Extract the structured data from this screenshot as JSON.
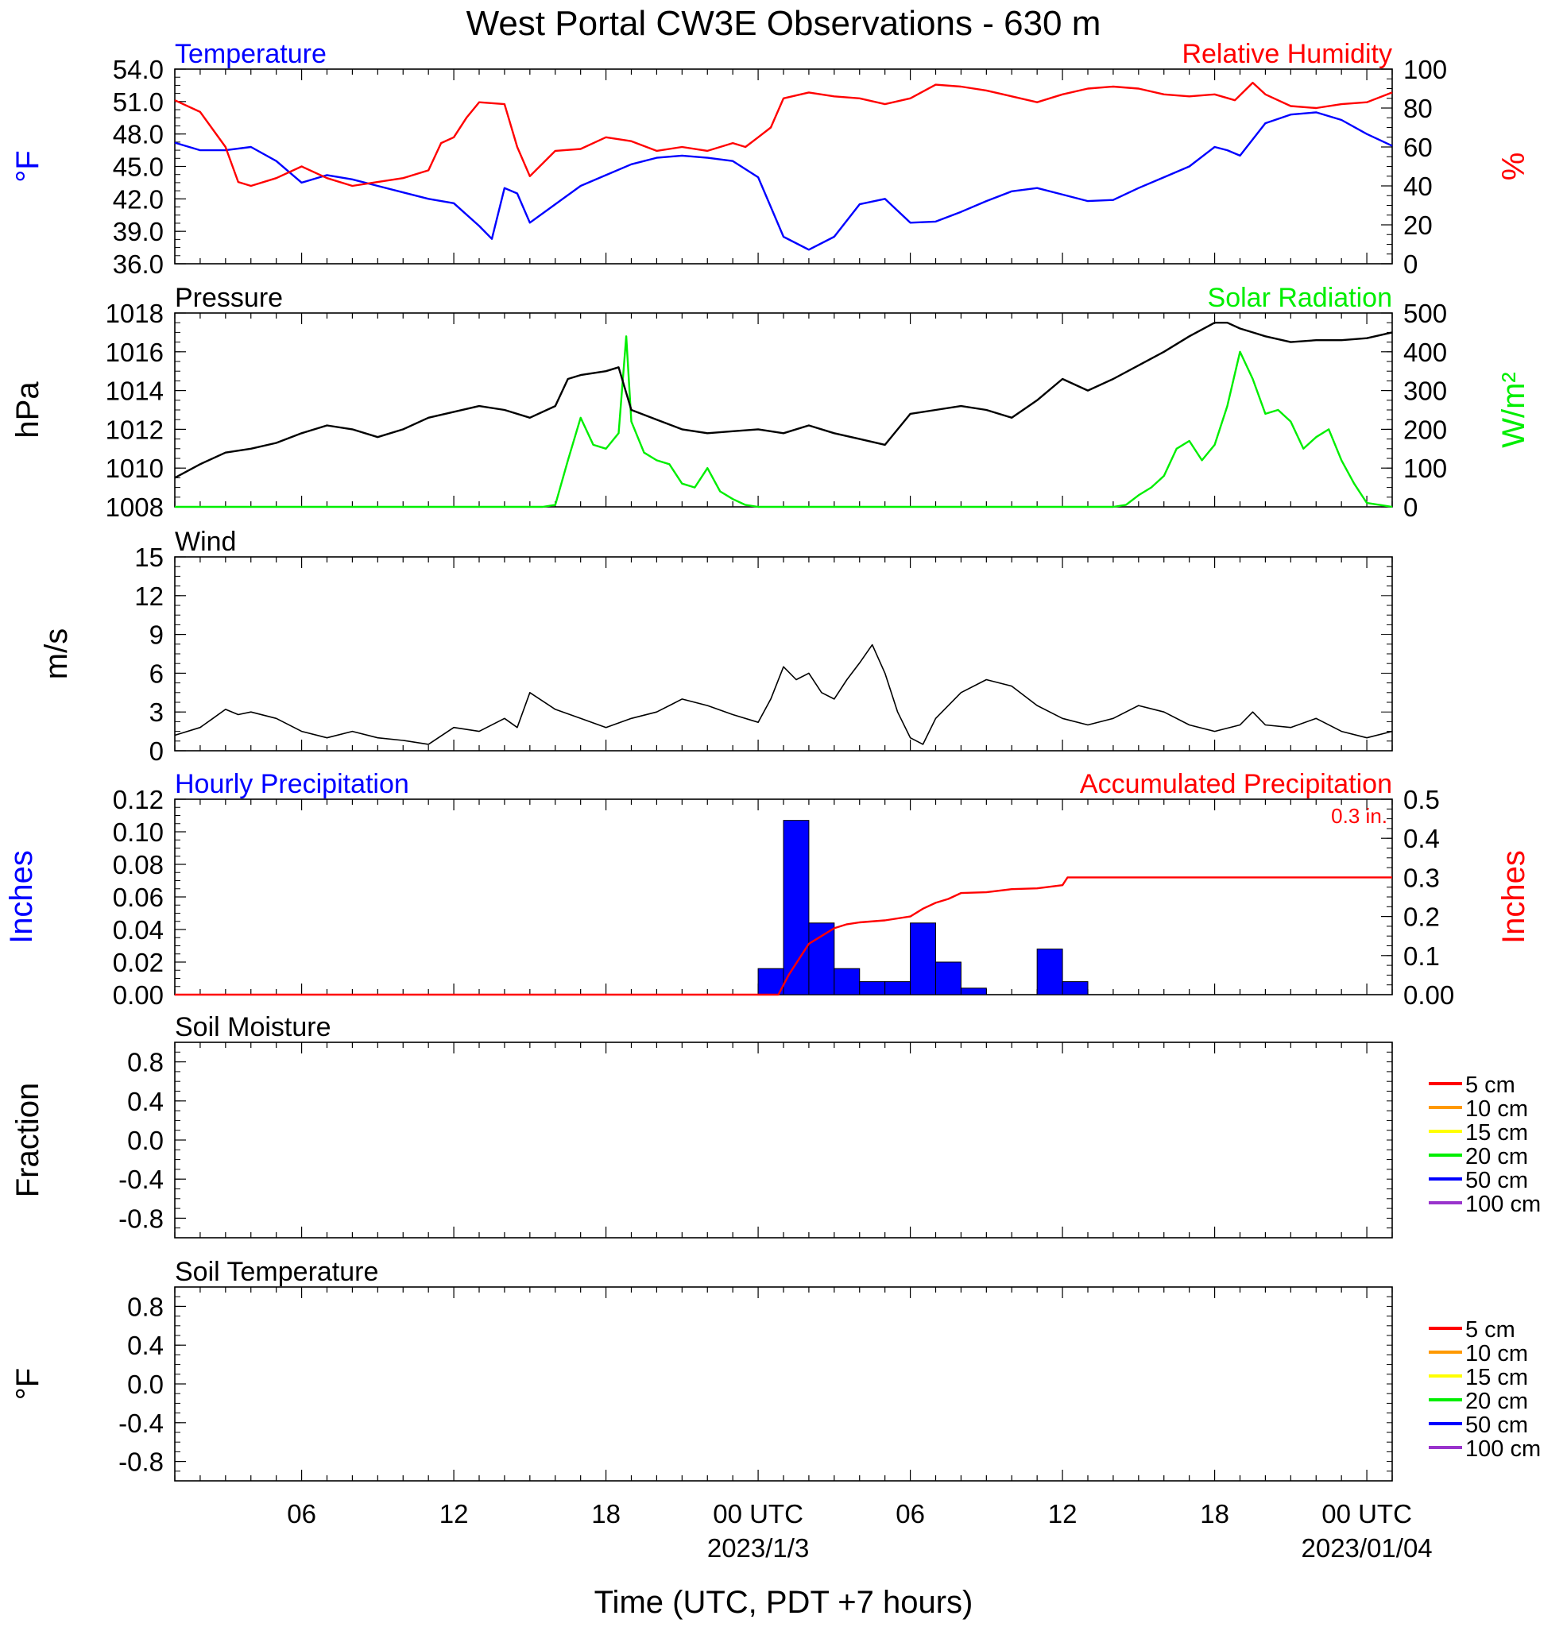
{
  "title": "West Portal CW3E Observations - 630 m",
  "x_axis": {
    "label": "Time (UTC, PDT +7 hours)",
    "hours_start": 1,
    "hours_end": 49,
    "tick_every_hours": 6,
    "tick_labels": [
      {
        "hour": 6,
        "label": "06"
      },
      {
        "hour": 12,
        "label": "12"
      },
      {
        "hour": 18,
        "label": "18"
      },
      {
        "hour": 24,
        "label": "00 UTC",
        "date": "2023/1/3"
      },
      {
        "hour": 30,
        "label": "06"
      },
      {
        "hour": 36,
        "label": "12"
      },
      {
        "hour": 42,
        "label": "18"
      },
      {
        "hour": 48,
        "label": "00 UTC",
        "date": "2023/01/04"
      }
    ]
  },
  "chart_data": [
    {
      "type": "line",
      "panel": "temperature_humidity",
      "title_left": "Temperature",
      "title_right": "Relative Humidity",
      "ylabel_left": "°F",
      "ylabel_right": "%",
      "ylim_left": [
        36,
        54
      ],
      "ylim_right": [
        0,
        100
      ],
      "yticks_left": [
        "54.0",
        "51.0",
        "48.0",
        "45.0",
        "42.0",
        "39.0",
        "36.0"
      ],
      "yticks_right": [
        "100",
        "80",
        "60",
        "40",
        "20",
        "0"
      ],
      "series": [
        {
          "name": "Temperature",
          "axis": "left",
          "color": "#0000ff",
          "x": [
            1,
            2,
            3,
            4,
            5,
            6,
            7,
            8,
            9,
            10,
            11,
            12,
            13,
            13.5,
            14,
            14.5,
            15,
            16,
            17,
            18,
            19,
            20,
            21,
            22,
            23,
            24,
            25,
            26,
            27,
            28,
            29,
            30,
            31,
            32,
            33,
            34,
            35,
            36,
            37,
            38,
            39,
            40,
            41,
            42,
            42.5,
            43,
            44,
            45,
            46,
            47,
            48,
            49
          ],
          "y": [
            47.2,
            46.5,
            46.5,
            46.8,
            45.5,
            43.5,
            44.2,
            43.8,
            43.2,
            42.6,
            42.0,
            41.6,
            39.5,
            38.3,
            43.0,
            42.5,
            39.8,
            41.5,
            43.2,
            44.2,
            45.2,
            45.8,
            46.0,
            45.8,
            45.5,
            44.0,
            38.5,
            37.3,
            38.5,
            41.5,
            42.0,
            39.8,
            39.9,
            40.8,
            41.8,
            42.7,
            43.0,
            42.4,
            41.8,
            41.9,
            43.0,
            44.0,
            45.0,
            46.8,
            46.5,
            46.0,
            49.0,
            49.8,
            50.0,
            49.3,
            48.0,
            46.9
          ]
        },
        {
          "name": "Relative Humidity",
          "axis": "right",
          "color": "#ff0000",
          "x": [
            1,
            2,
            3,
            3.5,
            4,
            5,
            6,
            7,
            8,
            9,
            10,
            11,
            11.5,
            12,
            12.5,
            13,
            14,
            14.5,
            15,
            16,
            17,
            18,
            19,
            20,
            21,
            22,
            23,
            23.5,
            24,
            24.5,
            25,
            26,
            27,
            28,
            29,
            30,
            31,
            32,
            33,
            34,
            35,
            36,
            37,
            38,
            39,
            40,
            41,
            42,
            42.8,
            43.5,
            44,
            45,
            46,
            47,
            48,
            49
          ],
          "y": [
            84,
            78,
            60,
            42,
            40,
            44,
            50,
            44,
            40,
            42,
            44,
            48,
            62,
            65,
            75,
            83,
            82,
            60,
            45,
            58,
            59,
            65,
            63,
            58,
            60,
            58,
            62,
            60,
            65,
            70,
            85,
            88,
            86,
            85,
            82,
            85,
            92,
            91,
            89,
            86,
            83,
            87,
            90,
            91,
            90,
            87,
            86,
            87,
            84,
            93,
            87,
            81,
            80,
            82,
            83,
            88
          ]
        }
      ]
    },
    {
      "type": "line",
      "panel": "pressure_solar",
      "title_left": "Pressure",
      "title_right": "Solar Radiation",
      "ylabel_left": "hPa",
      "ylabel_right": "W/m²",
      "ylim_left": [
        1008,
        1018
      ],
      "ylim_right": [
        0,
        500
      ],
      "yticks_left": [
        "1018",
        "1016",
        "1014",
        "1012",
        "1010",
        "1008"
      ],
      "yticks_right": [
        "500",
        "400",
        "300",
        "200",
        "100",
        "0"
      ],
      "series": [
        {
          "name": "Pressure",
          "axis": "left",
          "color": "#000000",
          "x": [
            1,
            2,
            3,
            4,
            5,
            6,
            7,
            8,
            9,
            10,
            11,
            12,
            13,
            14,
            15,
            16,
            16.5,
            17,
            18,
            18.5,
            19,
            20,
            21,
            22,
            23,
            24,
            25,
            26,
            27,
            28,
            29,
            30,
            31,
            32,
            33,
            34,
            35,
            36,
            37,
            38,
            39,
            40,
            41,
            42,
            42.5,
            43,
            43.5,
            44,
            45,
            46,
            47,
            48,
            49
          ],
          "y": [
            1009.5,
            1010.2,
            1010.8,
            1011.0,
            1011.3,
            1011.8,
            1012.2,
            1012.0,
            1011.6,
            1012.0,
            1012.6,
            1012.9,
            1013.2,
            1013.0,
            1012.6,
            1013.2,
            1014.6,
            1014.8,
            1015.0,
            1015.2,
            1013.0,
            1012.5,
            1012.0,
            1011.8,
            1011.9,
            1012.0,
            1011.8,
            1012.2,
            1011.8,
            1011.5,
            1011.2,
            1012.8,
            1013.0,
            1013.2,
            1013.0,
            1012.6,
            1013.5,
            1014.6,
            1014.0,
            1014.6,
            1015.3,
            1016.0,
            1016.8,
            1017.5,
            1017.5,
            1017.2,
            1017.0,
            1016.8,
            1016.5,
            1016.6,
            1016.6,
            1016.7,
            1017.0
          ]
        },
        {
          "name": "Solar Radiation",
          "axis": "right",
          "color": "#00ee00",
          "x": [
            1,
            15,
            15.5,
            16,
            16.5,
            17,
            17.5,
            18,
            18.5,
            18.8,
            19,
            19.5,
            20,
            20.5,
            21,
            21.5,
            22,
            22.5,
            23,
            23.5,
            24,
            25,
            38,
            38.5,
            39,
            39.5,
            40,
            40.5,
            41,
            41.5,
            42,
            42.5,
            43,
            43.5,
            44,
            44.5,
            45,
            45.5,
            46,
            46.5,
            47,
            47.5,
            48,
            49
          ],
          "y": [
            0,
            0,
            0,
            5,
            120,
            230,
            160,
            150,
            190,
            440,
            220,
            140,
            120,
            110,
            60,
            50,
            100,
            40,
            20,
            5,
            0,
            0,
            0,
            5,
            30,
            50,
            80,
            150,
            170,
            120,
            160,
            260,
            400,
            330,
            240,
            250,
            220,
            150,
            180,
            200,
            120,
            60,
            10,
            0
          ]
        }
      ]
    },
    {
      "type": "line",
      "panel": "wind",
      "title": "Wind",
      "ylabel": "m/s",
      "ylim": [
        0,
        15
      ],
      "yticks": [
        "15",
        "12",
        "9",
        "6",
        "3",
        "0"
      ],
      "series": [
        {
          "name": "Wind",
          "color": "#000000",
          "x": [
            1,
            2,
            2.5,
            3,
            3.5,
            4,
            5,
            6,
            7,
            8,
            9,
            10,
            11,
            12,
            13,
            14,
            14.5,
            15,
            16,
            17,
            18,
            19,
            20,
            20.5,
            21,
            22,
            23,
            24,
            24.5,
            25,
            25.5,
            26,
            26.5,
            27,
            27.5,
            28,
            28.5,
            29,
            29.5,
            30,
            30.5,
            31,
            32,
            33,
            34,
            35,
            36,
            37,
            38,
            39,
            40,
            41,
            42,
            43,
            43.5,
            44,
            45,
            46,
            47,
            48,
            49
          ],
          "y": [
            1.2,
            1.8,
            2.5,
            3.2,
            2.8,
            3.0,
            2.5,
            1.5,
            1.0,
            1.5,
            1.0,
            0.8,
            0.5,
            1.8,
            1.5,
            2.5,
            1.8,
            4.5,
            3.2,
            2.5,
            1.8,
            2.5,
            3.0,
            3.5,
            4.0,
            3.5,
            2.8,
            2.2,
            4.0,
            6.5,
            5.5,
            6.0,
            4.5,
            4.0,
            5.5,
            6.8,
            8.2,
            6.0,
            3.0,
            1.0,
            0.5,
            2.5,
            4.5,
            5.5,
            5.0,
            3.5,
            2.5,
            2.0,
            2.5,
            3.5,
            3.0,
            2.0,
            1.5,
            2.0,
            3.0,
            2.0,
            1.8,
            2.5,
            1.5,
            1.0,
            1.5
          ]
        }
      ]
    },
    {
      "type": "bar",
      "panel": "precipitation",
      "title_left": "Hourly Precipitation",
      "title_right": "Accumulated Precipitation",
      "total_label": "0.3 in.",
      "ylabel_left": "Inches",
      "ylabel_right": "Inches",
      "ylim_left": [
        0,
        0.12
      ],
      "ylim_right": [
        0,
        0.5
      ],
      "yticks_left": [
        "0.12",
        "0.10",
        "0.08",
        "0.06",
        "0.04",
        "0.02",
        "0.00"
      ],
      "yticks_right": [
        "0.5",
        "0.4",
        "0.3",
        "0.2",
        "0.1",
        "0.00"
      ],
      "bars": {
        "name": "Hourly Precipitation",
        "color": "#0000ff",
        "x_start": [
          24,
          25,
          26,
          27,
          28,
          29,
          30,
          31,
          32,
          35,
          36
        ],
        "values": [
          0.016,
          0.107,
          0.044,
          0.016,
          0.008,
          0.008,
          0.044,
          0.02,
          0.004,
          0.028,
          0.008
        ]
      },
      "series": [
        {
          "name": "Accumulated Precipitation",
          "axis": "right",
          "color": "#ff0000",
          "x": [
            1,
            24.8,
            25.2,
            25.7,
            26.0,
            26.5,
            27.0,
            27.5,
            28.0,
            29.0,
            30.0,
            30.5,
            31.0,
            31.5,
            32.0,
            33.0,
            34.0,
            35.0,
            36.0,
            36.2,
            37.0,
            49.0
          ],
          "y": [
            0,
            0,
            0.05,
            0.1,
            0.13,
            0.15,
            0.17,
            0.18,
            0.185,
            0.19,
            0.2,
            0.22,
            0.235,
            0.245,
            0.26,
            0.262,
            0.27,
            0.272,
            0.28,
            0.3,
            0.3,
            0.3
          ]
        }
      ]
    },
    {
      "type": "line",
      "panel": "soil_moisture",
      "title": "Soil Moisture",
      "ylabel": "Fraction",
      "ylim": [
        -1,
        1
      ],
      "yticks": [
        "0.8",
        "0.4",
        "0.0",
        "-0.4",
        "-0.8"
      ],
      "series": [
        {
          "name": "5 cm",
          "color": "#ff0000",
          "values": []
        },
        {
          "name": "10 cm",
          "color": "#ff9900",
          "values": []
        },
        {
          "name": "15 cm",
          "color": "#ffff00",
          "values": []
        },
        {
          "name": "20 cm",
          "color": "#00ee00",
          "values": []
        },
        {
          "name": "50 cm",
          "color": "#0000ff",
          "values": []
        },
        {
          "name": "100 cm",
          "color": "#9933cc",
          "values": []
        }
      ]
    },
    {
      "type": "line",
      "panel": "soil_temperature",
      "title": "Soil Temperature",
      "ylabel": "°F",
      "ylim": [
        -1,
        1
      ],
      "yticks": [
        "0.8",
        "0.4",
        "0.0",
        "-0.4",
        "-0.8"
      ],
      "series": [
        {
          "name": "5 cm",
          "color": "#ff0000",
          "values": []
        },
        {
          "name": "10 cm",
          "color": "#ff9900",
          "values": []
        },
        {
          "name": "15 cm",
          "color": "#ffff00",
          "values": []
        },
        {
          "name": "20 cm",
          "color": "#00ee00",
          "values": []
        },
        {
          "name": "50 cm",
          "color": "#0000ff",
          "values": []
        },
        {
          "name": "100 cm",
          "color": "#9933cc",
          "values": []
        }
      ]
    }
  ]
}
